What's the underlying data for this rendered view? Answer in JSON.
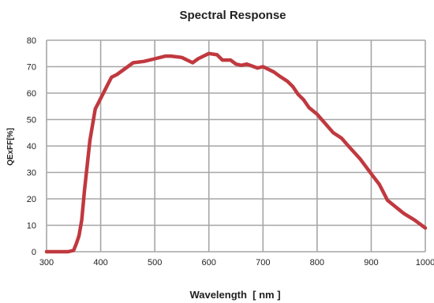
{
  "chart_data": {
    "type": "line",
    "title": "Spectral Response",
    "xlabel": "Wavelength  [ nm ]",
    "ylabel": "QExFF[%]",
    "xlim": [
      300,
      1000
    ],
    "ylim": [
      0,
      80
    ],
    "xticks": [
      300,
      400,
      500,
      600,
      700,
      800,
      900,
      1000
    ],
    "yticks": [
      0,
      10,
      20,
      30,
      40,
      50,
      60,
      70,
      80
    ],
    "grid": true,
    "line_color": "#c0393f",
    "grid_color": "#a6a6a6",
    "series": [
      {
        "x": [
          300,
          320,
          340,
          350,
          355,
          360,
          365,
          370,
          380,
          390,
          400,
          410,
          420,
          430,
          440,
          450,
          460,
          480,
          500,
          520,
          530,
          550,
          570,
          580,
          600,
          615,
          625,
          640,
          650,
          660,
          670,
          690,
          700,
          720,
          730,
          745,
          755,
          765,
          775,
          785,
          800,
          815,
          830,
          845,
          860,
          880,
          900,
          915,
          930,
          945,
          960,
          980,
          1000
        ],
        "y": [
          0,
          0,
          0,
          0.5,
          3,
          6,
          12,
          23,
          42,
          54,
          58,
          62,
          66,
          67,
          68.5,
          70,
          71.5,
          72,
          73,
          74,
          74,
          73.5,
          71.5,
          73,
          75,
          74.5,
          72.5,
          72.5,
          71,
          70.5,
          71,
          69.5,
          70,
          68,
          66.5,
          64.5,
          62.5,
          59.5,
          57.5,
          54.5,
          52,
          48.5,
          45,
          43,
          39.5,
          35,
          29.5,
          25.5,
          19.5,
          17,
          14.5,
          12,
          9
        ]
      }
    ]
  }
}
